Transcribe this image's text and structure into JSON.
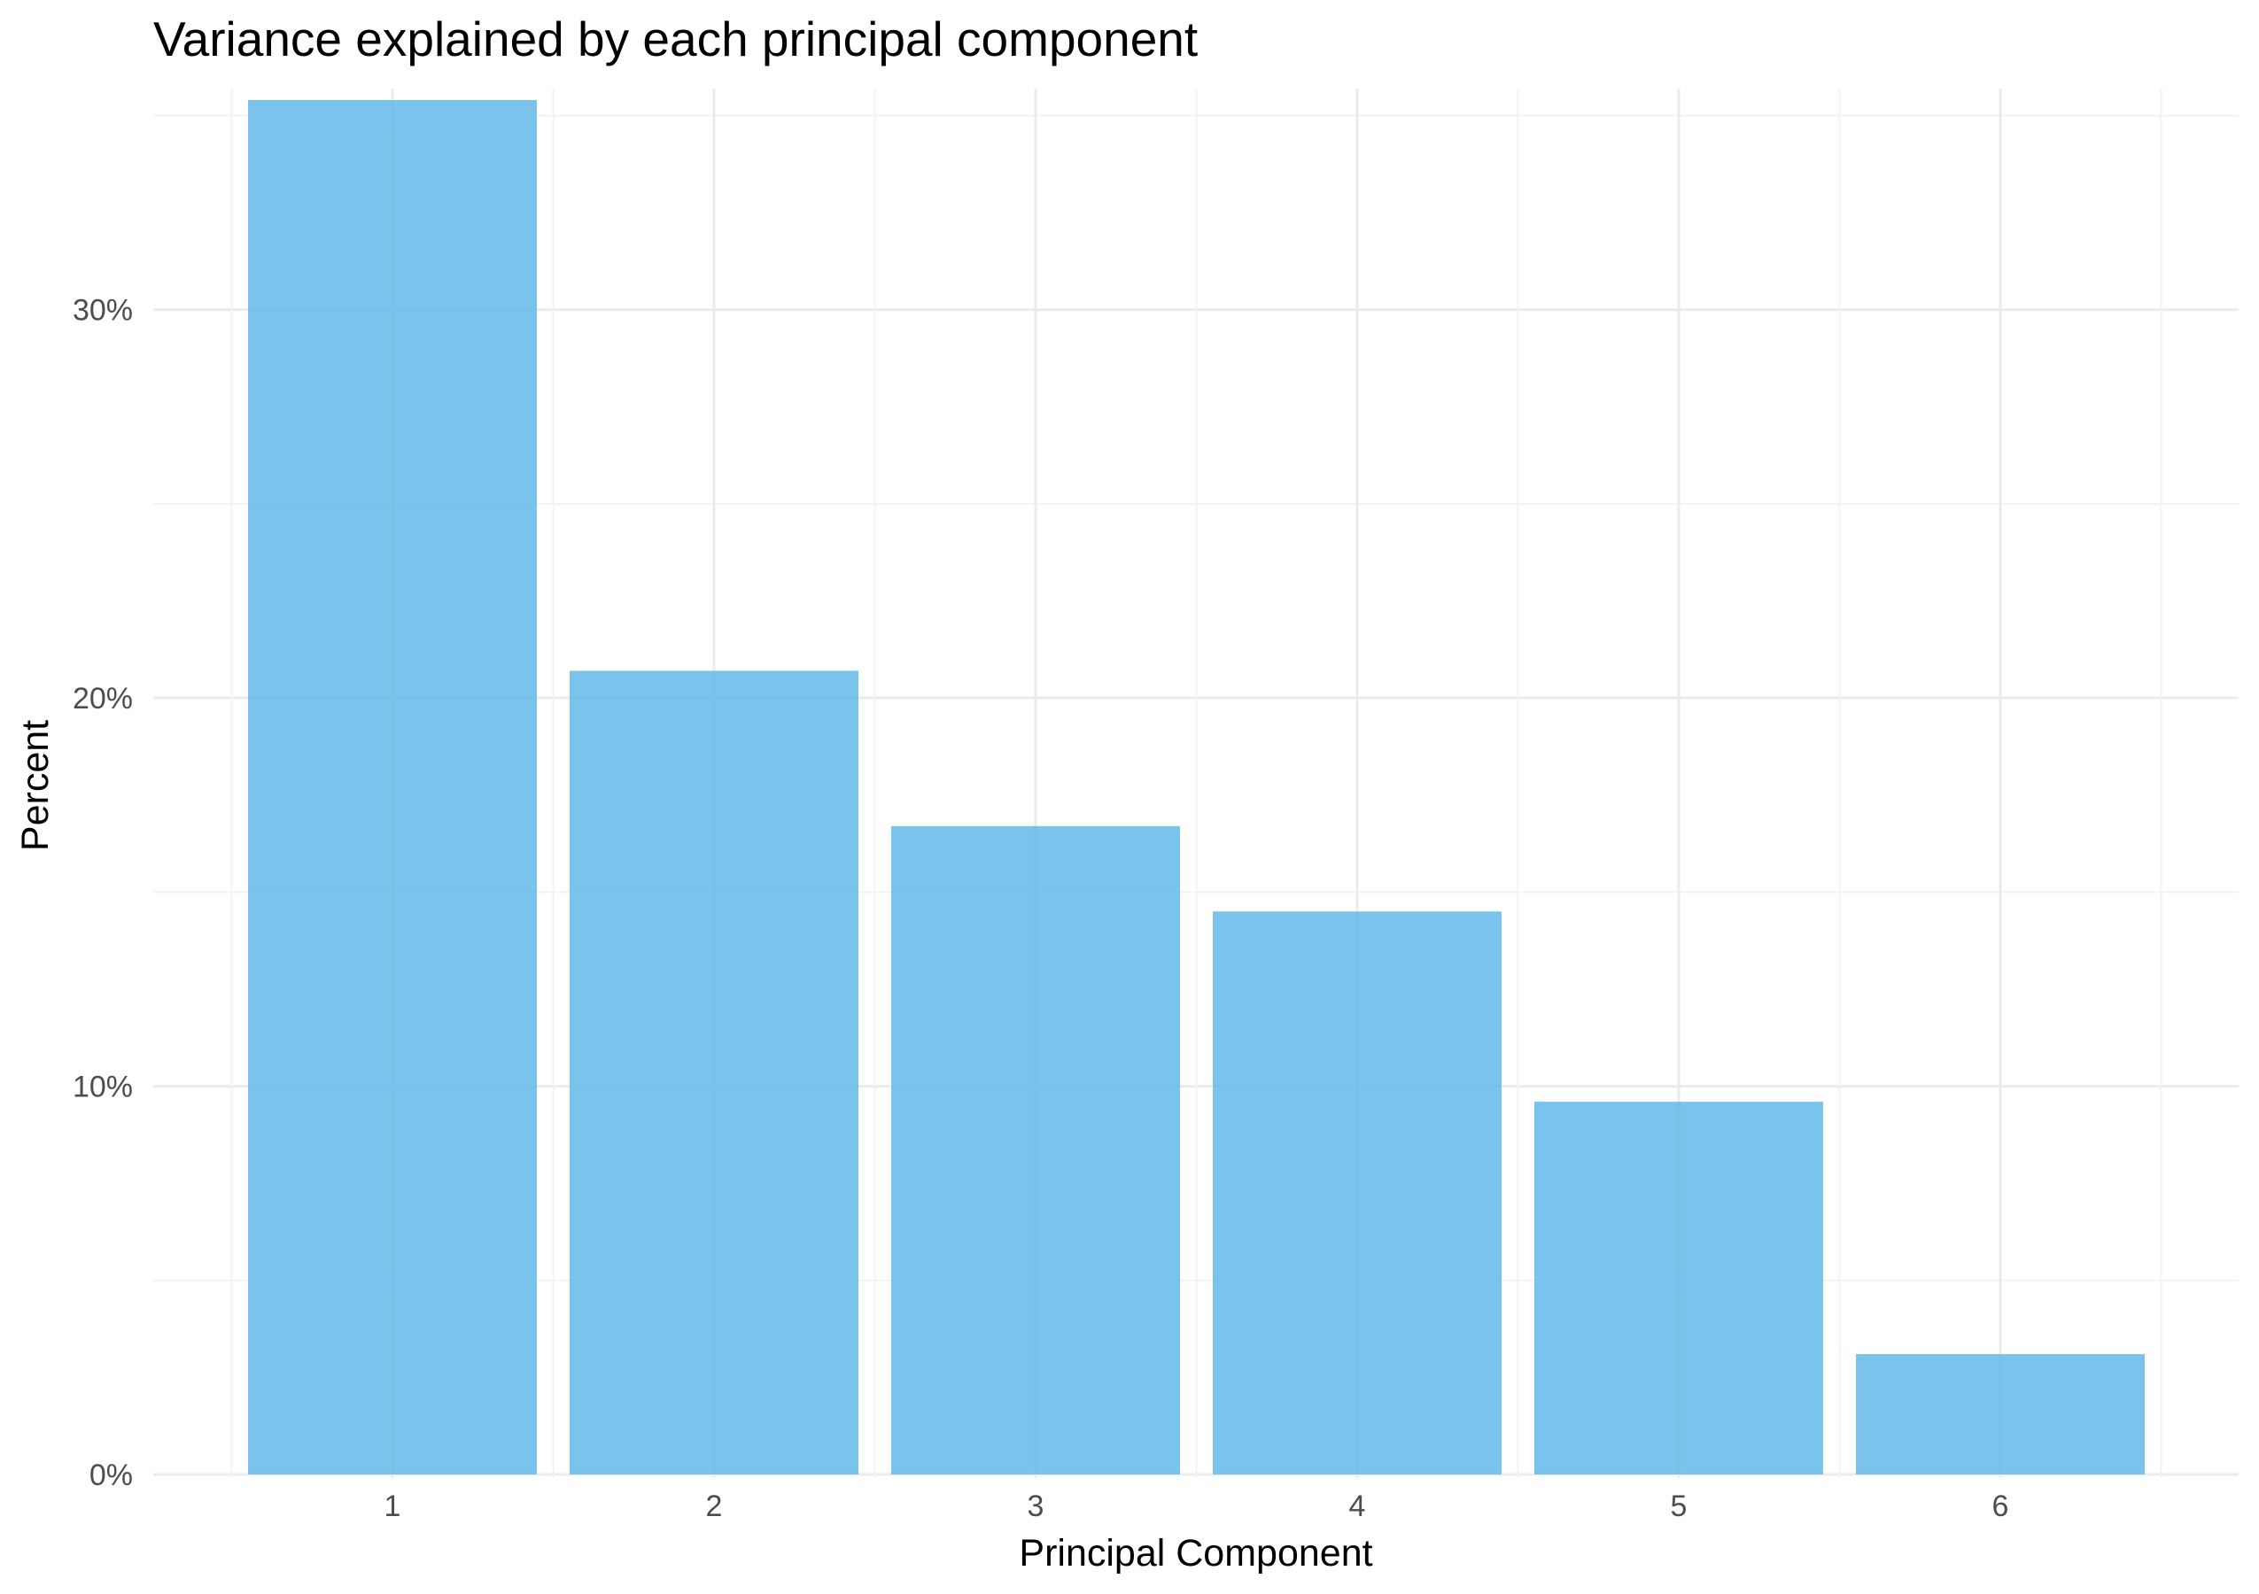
{
  "chart_data": {
    "type": "bar",
    "title": "Variance explained by each principal component",
    "xlabel": "Principal Component",
    "ylabel": "Percent",
    "categories": [
      "1",
      "2",
      "3",
      "4",
      "5",
      "6"
    ],
    "values": [
      35.4,
      20.7,
      16.7,
      14.5,
      9.6,
      3.1
    ],
    "ylim": [
      0,
      35.4
    ],
    "y_ticks": [
      0,
      10,
      20,
      30
    ],
    "y_tick_labels": [
      "0%",
      "10%",
      "20%",
      "30%"
    ],
    "grid": true,
    "legend": "none",
    "bar_color": "#63b8e9"
  }
}
